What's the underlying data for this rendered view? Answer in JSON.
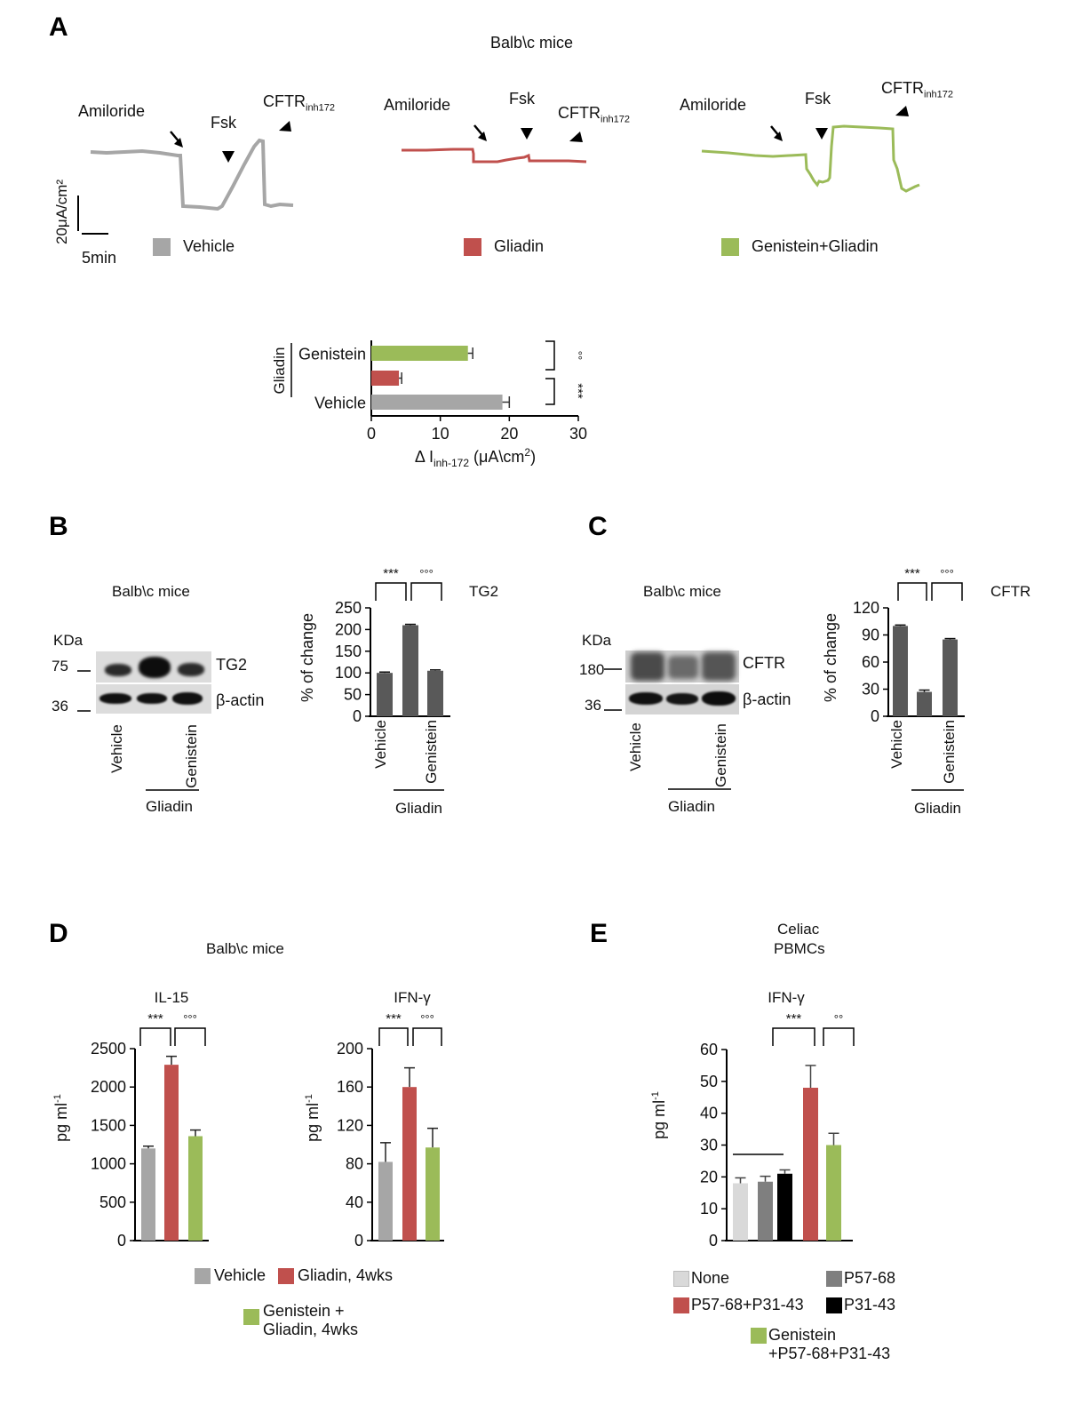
{
  "colors": {
    "vehicle": "#a6a6a6",
    "gliadin": "#c0504d",
    "genistein": "#9bbb59",
    "dark_bar": "#595959",
    "none": "#d9d9d9",
    "p57": "#7f7f7f",
    "p31": "#000000"
  },
  "panelA": {
    "letter": "A",
    "title": "Balb\\c mice",
    "traces": [
      {
        "name": "Vehicle",
        "amiloride": "Amiloride",
        "fsk": "Fsk",
        "cftr": "CFTR",
        "cftr_sub": "inh172",
        "legend": "Vehicle"
      },
      {
        "name": "Gliadin",
        "amiloride": "Amiloride",
        "fsk": "Fsk",
        "cftr": "CFTR",
        "cftr_sub": "inh172",
        "legend": "Gliadin"
      },
      {
        "name": "Genistein+Gliadin",
        "amiloride": "Amiloride",
        "fsk": "Fsk",
        "cftr": "CFTR",
        "cftr_sub": "inh172",
        "legend": "Genistein+Gliadin"
      }
    ],
    "scale_bar": {
      "y_label": "20μA/cm²",
      "x_label": "5min"
    }
  },
  "panelB": {
    "letter": "B",
    "blot_title": "Balb\\c mice",
    "kda": "KDa",
    "markers": [
      "75",
      "36"
    ],
    "bands": [
      "TG2",
      "β-actin"
    ],
    "lanes": [
      "Vehicle",
      "Genistein"
    ],
    "group": "Gliadin",
    "chart_title": "TG2"
  },
  "panelC": {
    "letter": "C",
    "blot_title": "Balb\\c mice",
    "kda": "KDa",
    "markers": [
      "180",
      "36"
    ],
    "bands": [
      "CFTR",
      "β-actin"
    ],
    "lanes": [
      "Vehicle",
      "Genistein"
    ],
    "group": "Gliadin",
    "chart_title": "CFTR"
  },
  "panelD": {
    "letter": "D",
    "title": "Balb\\c mice",
    "legend": [
      "Vehicle",
      "Gliadin, 4wks",
      "Genistein +",
      "Gliadin, 4wks"
    ]
  },
  "panelE": {
    "letter": "E",
    "title_line1": "Celiac",
    "title_line2": "PBMCs",
    "legend": [
      "None",
      "P57-68",
      "P57-68+P31-43",
      "P31-43",
      "Genistein",
      "+P57-68+P31-43"
    ]
  },
  "chart_data": [
    {
      "id": "A_bar",
      "type": "bar",
      "orientation": "horizontal",
      "categories": [
        "Genistein (Gliadin)",
        "Gliadin",
        "Vehicle"
      ],
      "values": [
        14,
        4,
        19
      ],
      "errors": [
        0.7,
        0.4,
        1.0
      ],
      "xlabel": "Δ I inh-172 (μA\\cm2)",
      "xlabel_main": "Δ I",
      "xlabel_sub": "inh-172",
      "xlabel_unit": " (μA\\cm",
      "xlabel_sup": "2",
      "xlabel_end": ")",
      "xlim": [
        0,
        30
      ],
      "xticks": [
        0,
        10,
        20,
        30
      ],
      "group_label": "Gliadin",
      "row_labels": [
        "Genistein",
        "",
        "Vehicle"
      ],
      "significance": [
        "°°",
        "***"
      ]
    },
    {
      "id": "B_chart",
      "type": "bar",
      "title": "TG2",
      "categories": [
        "Vehicle",
        "Gliadin",
        "Genistein+Gliadin"
      ],
      "values": [
        100,
        210,
        105
      ],
      "errors": [
        2,
        2,
        2
      ],
      "ylabel": "% of change",
      "ylim": [
        0,
        250
      ],
      "yticks": [
        0,
        50,
        100,
        150,
        200,
        250
      ],
      "xtick_labels": [
        "Vehicle",
        "",
        "Genistein"
      ],
      "group_label": "Gliadin",
      "significance": [
        "***",
        "°°°"
      ]
    },
    {
      "id": "C_chart",
      "type": "bar",
      "title": "CFTR",
      "categories": [
        "Vehicle",
        "Gliadin",
        "Genistein+Gliadin"
      ],
      "values": [
        100,
        27,
        85
      ],
      "errors": [
        1,
        2,
        1
      ],
      "ylabel": "% of change",
      "ylim": [
        0,
        120
      ],
      "yticks": [
        0,
        30,
        60,
        90,
        120
      ],
      "xtick_labels": [
        "Vehicle",
        "",
        "Genistein"
      ],
      "group_label": "Gliadin",
      "significance": [
        "***",
        "°°°"
      ]
    },
    {
      "id": "D_IL15",
      "type": "bar",
      "title": "IL-15",
      "categories": [
        "Vehicle",
        "Gliadin, 4wks",
        "Genistein + Gliadin, 4wks"
      ],
      "values": [
        1200,
        2290,
        1360
      ],
      "errors": [
        30,
        110,
        80
      ],
      "ylabel": "pg ml-1",
      "ylim": [
        0,
        2500
      ],
      "yticks": [
        0,
        500,
        1000,
        1500,
        2000,
        2500
      ],
      "significance": [
        "***",
        "°°°"
      ]
    },
    {
      "id": "D_IFNg",
      "type": "bar",
      "title": "IFN-γ",
      "categories": [
        "Vehicle",
        "Gliadin, 4wks",
        "Genistein + Gliadin, 4wks"
      ],
      "values": [
        82,
        160,
        97
      ],
      "errors": [
        20,
        20,
        20
      ],
      "ylabel": "pg ml-1",
      "ylim": [
        0,
        200
      ],
      "yticks": [
        0,
        40,
        80,
        120,
        160,
        200
      ],
      "significance": [
        "***",
        "°°°"
      ]
    },
    {
      "id": "E_IFNg",
      "type": "bar",
      "title": "IFN-γ",
      "categories": [
        "None",
        "P57-68",
        "P31-43",
        "P57-68+P31-43",
        "Genistein+P57-68+P31-43"
      ],
      "values": [
        18,
        18.5,
        21,
        48,
        30
      ],
      "errors": [
        1.7,
        1.7,
        1.2,
        7,
        3.7
      ],
      "ylabel": "pg ml-1",
      "ylim": [
        0,
        60
      ],
      "yticks": [
        0,
        10,
        20,
        30,
        40,
        50,
        60
      ],
      "significance": [
        "***",
        "°°"
      ]
    }
  ]
}
